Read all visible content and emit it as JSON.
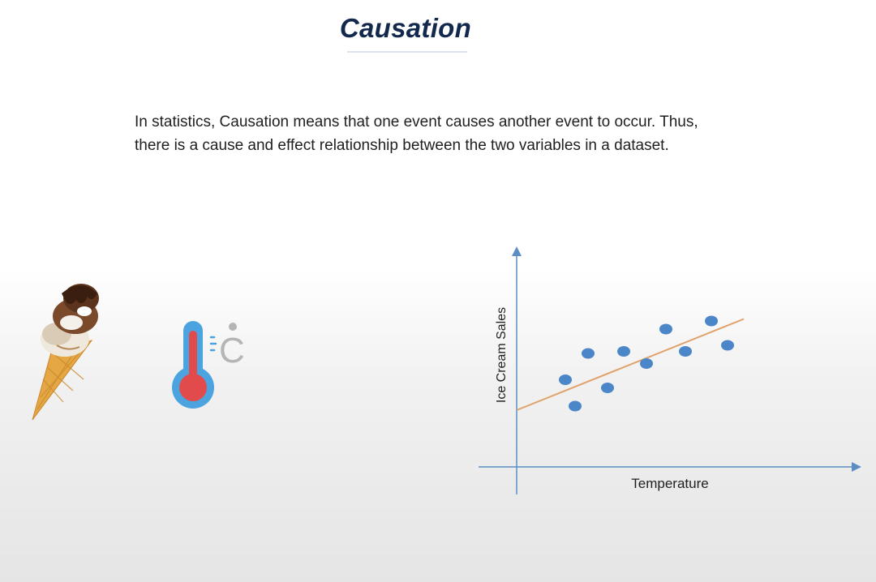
{
  "slide": {
    "title": "Causation",
    "body": "In statistics, Causation means that one event causes another event to occur. Thus, there is a cause and effect relationship between the two variables in a dataset."
  },
  "icons": {
    "left": "ice-cream-cone",
    "right": "thermometer-celsius",
    "unit_glyph": "C"
  },
  "colors": {
    "title": "#12284c",
    "points": "#4a86c8",
    "trend_line": "#e0a26a",
    "axes": "#5b8fc4"
  },
  "chart_data": {
    "type": "scatter",
    "xlabel": "Temperature",
    "ylabel": "Ice Cream Sales",
    "title": "",
    "grid": false,
    "xlim": [
      0,
      10
    ],
    "ylim": [
      0,
      10
    ],
    "points": [
      {
        "x": 1.5,
        "y": 4.3
      },
      {
        "x": 1.8,
        "y": 3.0
      },
      {
        "x": 2.2,
        "y": 5.6
      },
      {
        "x": 2.8,
        "y": 3.9
      },
      {
        "x": 3.3,
        "y": 5.7
      },
      {
        "x": 4.0,
        "y": 5.1
      },
      {
        "x": 4.6,
        "y": 6.8
      },
      {
        "x": 5.2,
        "y": 5.7
      },
      {
        "x": 6.0,
        "y": 7.2
      },
      {
        "x": 6.5,
        "y": 6.0
      }
    ],
    "trend_line": {
      "x": [
        0,
        7.0
      ],
      "y": [
        2.8,
        7.3
      ]
    }
  }
}
